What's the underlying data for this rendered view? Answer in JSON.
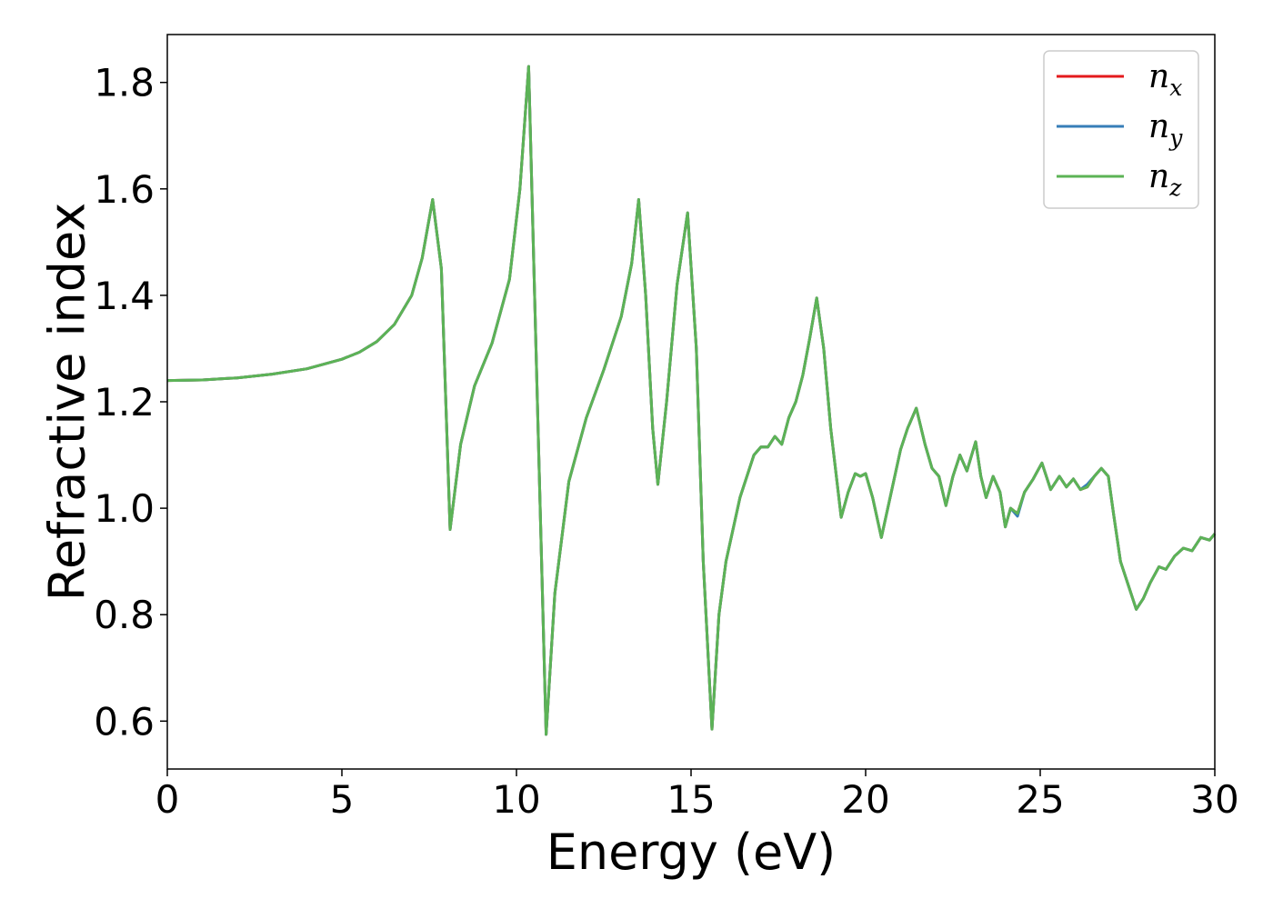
{
  "chart_data": {
    "type": "line",
    "xlabel": "Energy (eV)",
    "ylabel": "Refractive index",
    "xlim": [
      0,
      30
    ],
    "ylim": [
      0.51,
      1.89
    ],
    "xticks": [
      "0",
      "5",
      "10",
      "15",
      "20",
      "25",
      "30"
    ],
    "yticks": [
      "0.6",
      "0.8",
      "1.0",
      "1.2",
      "1.4",
      "1.6",
      "1.8"
    ],
    "grid": false,
    "legend_position": "top-right",
    "x": [
      0,
      1,
      2,
      3,
      4,
      5,
      5.5,
      6,
      6.5,
      7,
      7.3,
      7.6,
      7.85,
      8.1,
      8.4,
      8.8,
      9.3,
      9.8,
      10.1,
      10.35,
      10.6,
      10.85,
      11.1,
      11.5,
      12.0,
      12.5,
      13.0,
      13.3,
      13.5,
      13.7,
      13.9,
      14.05,
      14.3,
      14.6,
      14.9,
      15.15,
      15.35,
      15.6,
      15.8,
      16.0,
      16.4,
      16.8,
      17.0,
      17.2,
      17.4,
      17.6,
      17.8,
      18.0,
      18.2,
      18.4,
      18.6,
      18.8,
      19.0,
      19.3,
      19.5,
      19.7,
      19.85,
      20.0,
      20.2,
      20.45,
      20.7,
      21.0,
      21.2,
      21.45,
      21.7,
      21.9,
      22.1,
      22.3,
      22.5,
      22.7,
      22.9,
      23.15,
      23.3,
      23.45,
      23.65,
      23.85,
      24.0,
      24.15,
      24.35,
      24.55,
      24.8,
      25.05,
      25.3,
      25.55,
      25.75,
      25.95,
      26.15,
      26.35,
      26.55,
      26.75,
      26.95,
      27.1,
      27.3,
      27.5,
      27.75,
      27.95,
      28.15,
      28.4,
      28.6,
      28.85,
      29.1,
      29.35,
      29.6,
      29.85,
      30.0
    ],
    "series": [
      {
        "name": "n_x",
        "label_base": "n",
        "label_sub": "x",
        "color": "#e41a1c",
        "values": [
          1.24,
          1.241,
          1.245,
          1.252,
          1.262,
          1.28,
          1.293,
          1.313,
          1.345,
          1.4,
          1.47,
          1.58,
          1.45,
          0.96,
          1.12,
          1.23,
          1.31,
          1.43,
          1.6,
          1.83,
          1.2,
          0.575,
          0.84,
          1.05,
          1.17,
          1.26,
          1.36,
          1.46,
          1.58,
          1.4,
          1.15,
          1.045,
          1.2,
          1.42,
          1.555,
          1.3,
          0.9,
          0.585,
          0.8,
          0.9,
          1.02,
          1.1,
          1.115,
          1.115,
          1.135,
          1.12,
          1.17,
          1.2,
          1.25,
          1.32,
          1.395,
          1.3,
          1.15,
          0.983,
          1.03,
          1.065,
          1.06,
          1.065,
          1.02,
          0.945,
          1.02,
          1.11,
          1.15,
          1.188,
          1.12,
          1.075,
          1.06,
          1.005,
          1.06,
          1.1,
          1.07,
          1.125,
          1.06,
          1.02,
          1.06,
          1.03,
          0.965,
          1.0,
          0.99,
          1.03,
          1.055,
          1.085,
          1.035,
          1.06,
          1.04,
          1.055,
          1.035,
          1.04,
          1.06,
          1.075,
          1.06,
          0.99,
          0.9,
          0.86,
          0.81,
          0.83,
          0.86,
          0.89,
          0.885,
          0.91,
          0.925,
          0.92,
          0.945,
          0.94,
          0.952
        ]
      },
      {
        "name": "n_y",
        "label_base": "n",
        "label_sub": "y",
        "color": "#377eb8",
        "values": [
          1.24,
          1.241,
          1.245,
          1.252,
          1.262,
          1.28,
          1.293,
          1.313,
          1.345,
          1.4,
          1.47,
          1.58,
          1.45,
          0.96,
          1.12,
          1.23,
          1.31,
          1.43,
          1.6,
          1.83,
          1.2,
          0.575,
          0.84,
          1.05,
          1.17,
          1.26,
          1.36,
          1.46,
          1.58,
          1.4,
          1.15,
          1.045,
          1.2,
          1.42,
          1.555,
          1.3,
          0.9,
          0.585,
          0.8,
          0.9,
          1.02,
          1.1,
          1.115,
          1.115,
          1.135,
          1.12,
          1.17,
          1.2,
          1.25,
          1.32,
          1.395,
          1.3,
          1.15,
          0.983,
          1.03,
          1.065,
          1.06,
          1.065,
          1.02,
          0.945,
          1.02,
          1.11,
          1.15,
          1.188,
          1.12,
          1.075,
          1.06,
          1.005,
          1.06,
          1.1,
          1.07,
          1.125,
          1.06,
          1.02,
          1.06,
          1.03,
          0.965,
          1.0,
          0.985,
          1.03,
          1.055,
          1.085,
          1.035,
          1.06,
          1.04,
          1.055,
          1.035,
          1.045,
          1.06,
          1.075,
          1.06,
          0.99,
          0.9,
          0.86,
          0.81,
          0.83,
          0.86,
          0.89,
          0.885,
          0.91,
          0.925,
          0.92,
          0.945,
          0.94,
          0.952
        ]
      },
      {
        "name": "n_z",
        "label_base": "n",
        "label_sub": "z",
        "color": "#5cb356",
        "values": [
          1.24,
          1.241,
          1.245,
          1.252,
          1.262,
          1.28,
          1.293,
          1.313,
          1.345,
          1.4,
          1.47,
          1.58,
          1.45,
          0.96,
          1.12,
          1.23,
          1.31,
          1.43,
          1.6,
          1.83,
          1.2,
          0.575,
          0.84,
          1.05,
          1.17,
          1.26,
          1.36,
          1.46,
          1.58,
          1.4,
          1.15,
          1.045,
          1.2,
          1.42,
          1.555,
          1.3,
          0.9,
          0.585,
          0.8,
          0.9,
          1.02,
          1.1,
          1.115,
          1.115,
          1.135,
          1.12,
          1.17,
          1.2,
          1.25,
          1.32,
          1.395,
          1.3,
          1.15,
          0.983,
          1.03,
          1.065,
          1.06,
          1.065,
          1.02,
          0.945,
          1.02,
          1.11,
          1.15,
          1.188,
          1.12,
          1.075,
          1.06,
          1.005,
          1.06,
          1.1,
          1.07,
          1.125,
          1.06,
          1.02,
          1.06,
          1.03,
          0.965,
          1.0,
          0.99,
          1.03,
          1.055,
          1.085,
          1.035,
          1.06,
          1.04,
          1.055,
          1.035,
          1.04,
          1.06,
          1.075,
          1.06,
          0.99,
          0.9,
          0.86,
          0.81,
          0.83,
          0.86,
          0.89,
          0.885,
          0.91,
          0.925,
          0.92,
          0.945,
          0.94,
          0.952
        ]
      }
    ]
  }
}
